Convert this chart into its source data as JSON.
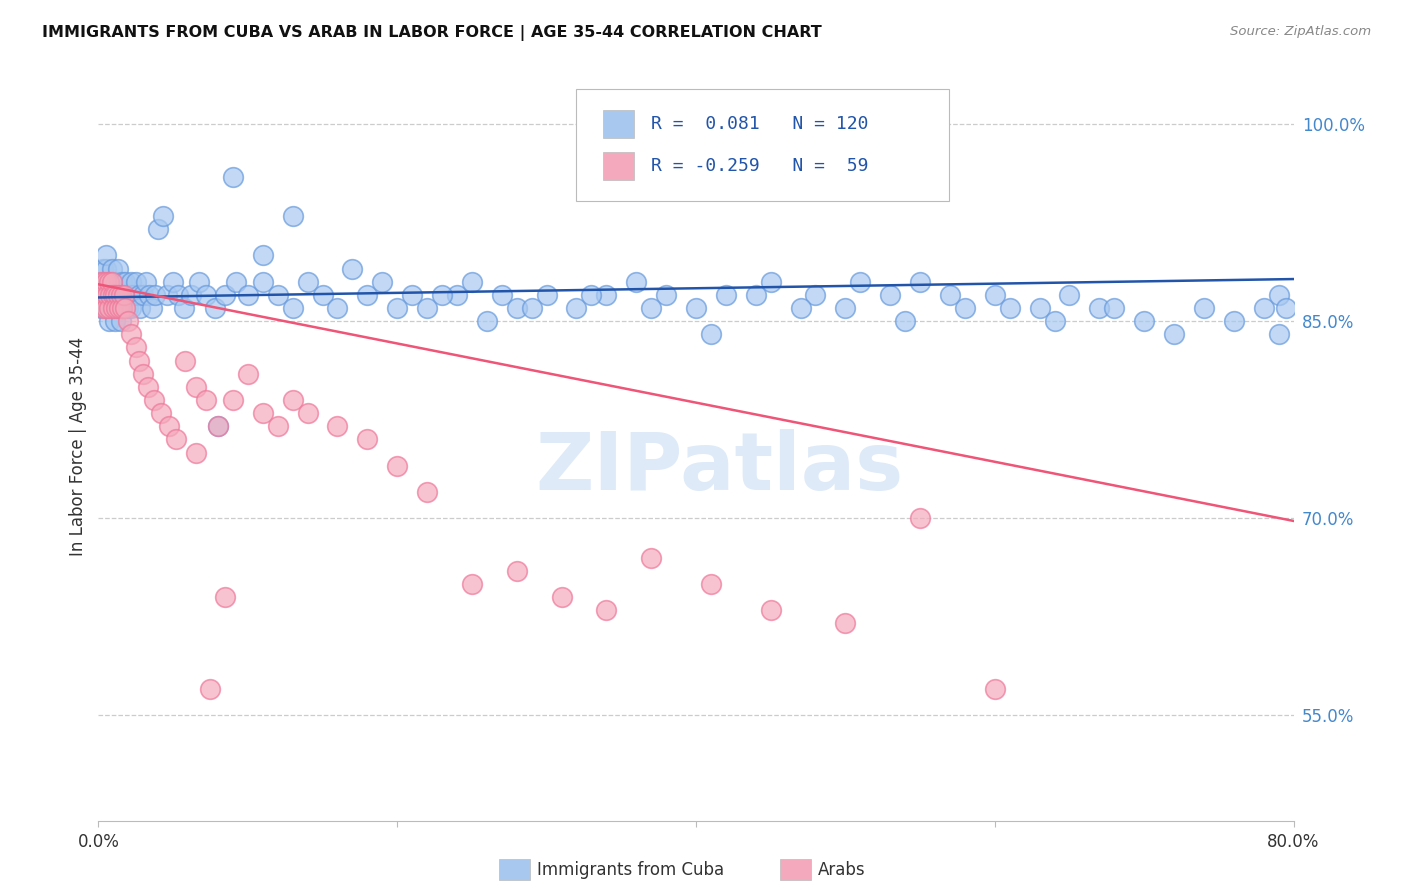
{
  "title": "IMMIGRANTS FROM CUBA VS ARAB IN LABOR FORCE | AGE 35-44 CORRELATION CHART",
  "source": "Source: ZipAtlas.com",
  "ylabel": "In Labor Force | Age 35-44",
  "right_yticks": [
    1.0,
    0.85,
    0.7,
    0.55
  ],
  "right_yticklabels": [
    "100.0%",
    "85.0%",
    "70.0%",
    "55.0%"
  ],
  "blue_color": "#A8C8F0",
  "pink_color": "#F4AABC",
  "blue_edge_color": "#6699DD",
  "pink_edge_color": "#EE7799",
  "blue_line_color": "#2255AA",
  "pink_line_color": "#EE5577",
  "watermark_color": "#C8DCF4",
  "xlim": [
    0.0,
    0.8
  ],
  "ylim": [
    0.47,
    1.04
  ],
  "blue_trend": [
    0.0,
    0.868,
    0.8,
    0.882
  ],
  "pink_trend": [
    0.0,
    0.878,
    0.8,
    0.698
  ],
  "cuba_x": [
    0.001,
    0.002,
    0.002,
    0.003,
    0.003,
    0.004,
    0.004,
    0.005,
    0.005,
    0.005,
    0.006,
    0.006,
    0.007,
    0.007,
    0.008,
    0.008,
    0.009,
    0.009,
    0.01,
    0.01,
    0.011,
    0.011,
    0.012,
    0.012,
    0.013,
    0.013,
    0.014,
    0.015,
    0.015,
    0.016,
    0.016,
    0.017,
    0.018,
    0.018,
    0.019,
    0.02,
    0.021,
    0.022,
    0.022,
    0.023,
    0.025,
    0.027,
    0.028,
    0.03,
    0.032,
    0.034,
    0.036,
    0.038,
    0.04,
    0.043,
    0.046,
    0.05,
    0.053,
    0.057,
    0.062,
    0.067,
    0.072,
    0.078,
    0.085,
    0.092,
    0.1,
    0.11,
    0.12,
    0.13,
    0.14,
    0.15,
    0.16,
    0.18,
    0.19,
    0.21,
    0.22,
    0.24,
    0.25,
    0.27,
    0.28,
    0.3,
    0.32,
    0.34,
    0.36,
    0.38,
    0.4,
    0.42,
    0.45,
    0.48,
    0.5,
    0.53,
    0.55,
    0.58,
    0.6,
    0.63,
    0.65,
    0.67,
    0.7,
    0.72,
    0.74,
    0.76,
    0.78,
    0.79,
    0.79,
    0.795,
    0.08,
    0.09,
    0.11,
    0.13,
    0.17,
    0.2,
    0.23,
    0.26,
    0.29,
    0.33,
    0.37,
    0.41,
    0.44,
    0.47,
    0.51,
    0.54,
    0.57,
    0.61,
    0.64,
    0.68
  ],
  "cuba_y": [
    0.87,
    0.86,
    0.88,
    0.87,
    0.89,
    0.86,
    0.88,
    0.87,
    0.89,
    0.9,
    0.86,
    0.88,
    0.85,
    0.87,
    0.86,
    0.88,
    0.87,
    0.89,
    0.86,
    0.88,
    0.87,
    0.85,
    0.86,
    0.88,
    0.87,
    0.89,
    0.86,
    0.87,
    0.85,
    0.88,
    0.86,
    0.87,
    0.86,
    0.88,
    0.87,
    0.86,
    0.87,
    0.88,
    0.86,
    0.87,
    0.88,
    0.87,
    0.86,
    0.87,
    0.88,
    0.87,
    0.86,
    0.87,
    0.92,
    0.93,
    0.87,
    0.88,
    0.87,
    0.86,
    0.87,
    0.88,
    0.87,
    0.86,
    0.87,
    0.88,
    0.87,
    0.88,
    0.87,
    0.86,
    0.88,
    0.87,
    0.86,
    0.87,
    0.88,
    0.87,
    0.86,
    0.87,
    0.88,
    0.87,
    0.86,
    0.87,
    0.86,
    0.87,
    0.88,
    0.87,
    0.86,
    0.87,
    0.88,
    0.87,
    0.86,
    0.87,
    0.88,
    0.86,
    0.87,
    0.86,
    0.87,
    0.86,
    0.85,
    0.84,
    0.86,
    0.85,
    0.86,
    0.84,
    0.87,
    0.86,
    0.77,
    0.96,
    0.9,
    0.93,
    0.89,
    0.86,
    0.87,
    0.85,
    0.86,
    0.87,
    0.86,
    0.84,
    0.87,
    0.86,
    0.88,
    0.85,
    0.87,
    0.86,
    0.85,
    0.86
  ],
  "arab_x": [
    0.001,
    0.002,
    0.003,
    0.003,
    0.004,
    0.005,
    0.005,
    0.006,
    0.007,
    0.007,
    0.008,
    0.009,
    0.01,
    0.01,
    0.011,
    0.012,
    0.013,
    0.014,
    0.015,
    0.016,
    0.017,
    0.018,
    0.02,
    0.022,
    0.025,
    0.027,
    0.03,
    0.033,
    0.037,
    0.042,
    0.047,
    0.052,
    0.058,
    0.065,
    0.072,
    0.08,
    0.09,
    0.1,
    0.11,
    0.12,
    0.13,
    0.14,
    0.16,
    0.18,
    0.2,
    0.22,
    0.25,
    0.28,
    0.31,
    0.34,
    0.37,
    0.41,
    0.45,
    0.5,
    0.55,
    0.6,
    0.065,
    0.075,
    0.085
  ],
  "arab_y": [
    0.88,
    0.87,
    0.88,
    0.86,
    0.87,
    0.88,
    0.86,
    0.87,
    0.88,
    0.86,
    0.87,
    0.88,
    0.87,
    0.86,
    0.87,
    0.86,
    0.87,
    0.86,
    0.87,
    0.86,
    0.87,
    0.86,
    0.85,
    0.84,
    0.83,
    0.82,
    0.81,
    0.8,
    0.79,
    0.78,
    0.77,
    0.76,
    0.82,
    0.8,
    0.79,
    0.77,
    0.79,
    0.81,
    0.78,
    0.77,
    0.79,
    0.78,
    0.77,
    0.76,
    0.74,
    0.72,
    0.65,
    0.66,
    0.64,
    0.63,
    0.67,
    0.65,
    0.63,
    0.62,
    0.7,
    0.57,
    0.75,
    0.57,
    0.64
  ]
}
